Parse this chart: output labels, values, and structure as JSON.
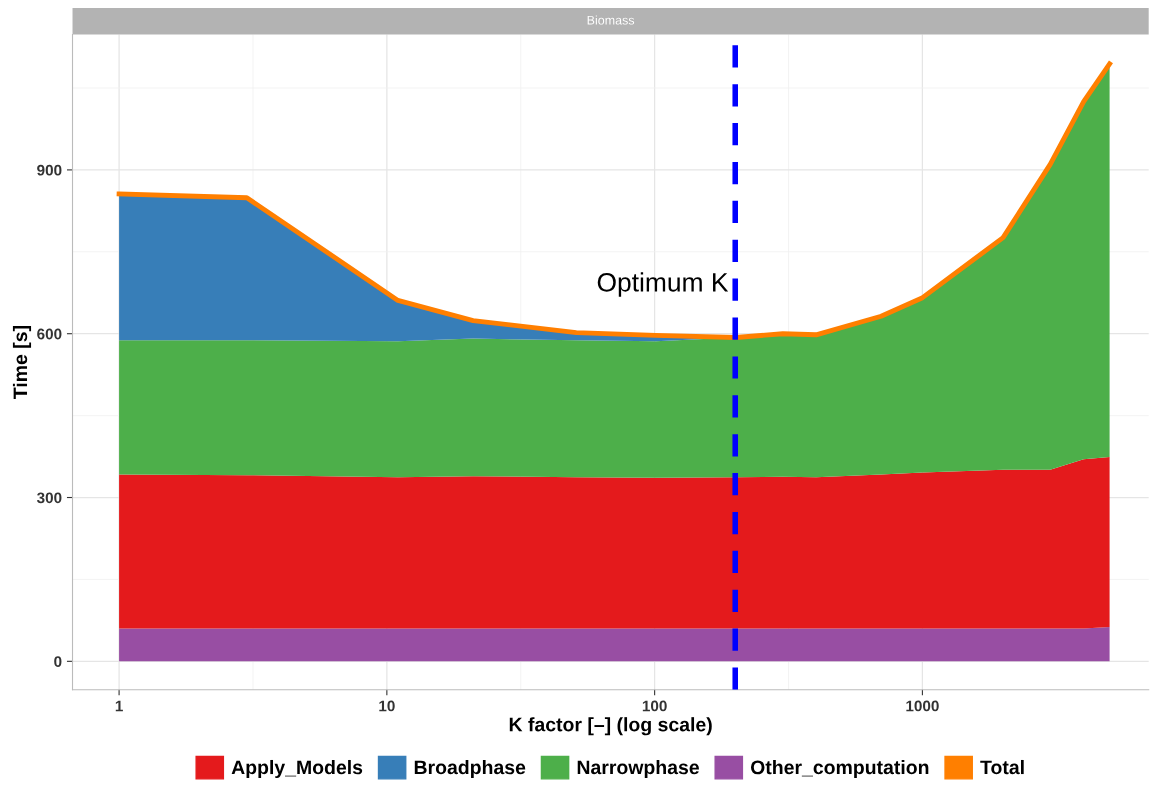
{
  "chart_data": {
    "type": "area",
    "title": "Biomass",
    "xlabel": "K factor [–] (log scale)",
    "ylabel": "Time [s]",
    "stacked": true,
    "log": "x",
    "x": [
      1,
      3,
      11,
      21,
      51,
      101,
      201,
      301,
      401,
      701,
      1001,
      2001,
      3001,
      4001,
      5001
    ],
    "series": [
      {
        "name": "Other_computation",
        "color": "#984ea3",
        "values": [
          60,
          60,
          60,
          60,
          60,
          60,
          60,
          60,
          60,
          60,
          60,
          60,
          60,
          60,
          63
        ]
      },
      {
        "name": "Apply_Models",
        "color": "#e41a1c",
        "values": [
          282,
          281,
          277,
          279,
          277,
          276,
          277,
          278,
          277,
          282,
          286,
          291,
          291,
          310,
          311
        ]
      },
      {
        "name": "Narrowphase",
        "color": "#4daf4a",
        "values": [
          246,
          247,
          249,
          252,
          251,
          250,
          256,
          262,
          261,
          290,
          320,
          425,
          559,
          655,
          720
        ]
      },
      {
        "name": "Broadphase",
        "color": "#377eb8",
        "values": [
          268,
          261,
          75,
          33,
          14,
          11,
          0,
          0,
          0,
          0,
          0,
          0,
          0,
          0,
          0
        ]
      },
      {
        "name": "Total",
        "type": "line",
        "color": "#ff7f00",
        "values": [
          856,
          849,
          661,
          624,
          602,
          597,
          593,
          600,
          598,
          632,
          666,
          776,
          910,
          1025,
          1094
        ]
      }
    ],
    "xlim": [
      0.67,
      7000
    ],
    "xticks": [
      1,
      10,
      100,
      1000
    ],
    "ylim": [
      -52,
      1148
    ],
    "yticks": [
      0,
      300,
      600,
      900
    ],
    "ref_lines": [
      {
        "axis": "x",
        "value": 200,
        "label": "Optimum K",
        "color": "#0000ff",
        "line_style": "dashed"
      }
    ],
    "grid": true,
    "legend": "bottom"
  }
}
